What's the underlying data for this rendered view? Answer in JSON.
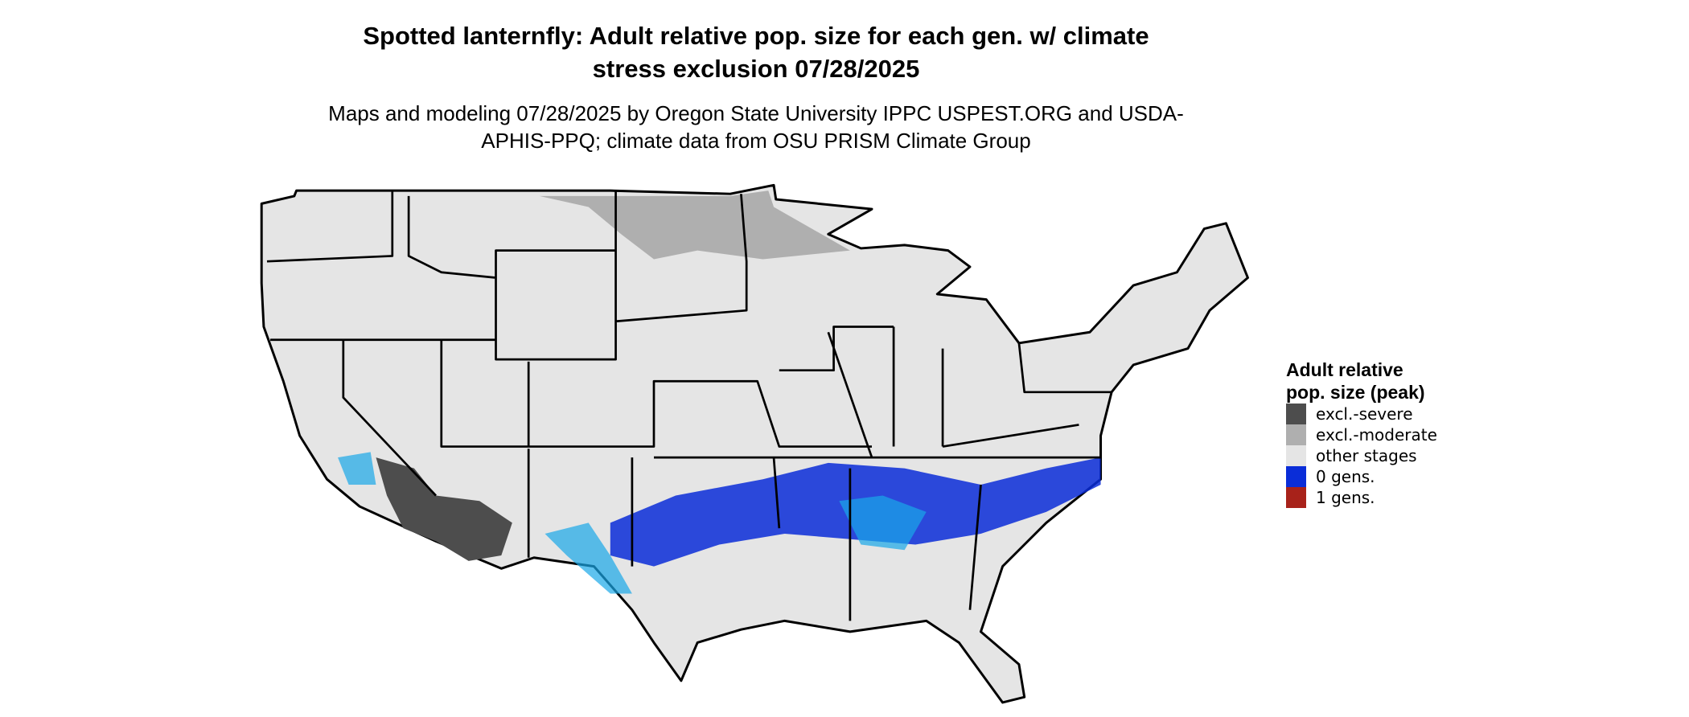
{
  "title": "Spotted lanternfly: Adult relative pop. size for each gen. w/ climate stress exclusion 07/28/2025",
  "subtitle": "Maps and modeling 07/28/2025 by Oregon State University IPPC USPEST.ORG and USDA-APHIS-PPQ; climate data from OSU PRISM Climate Group",
  "legend": {
    "title": "Adult relative pop. size (peak)",
    "items": [
      {
        "label": "excl.-severe",
        "color": "#4d4d4d"
      },
      {
        "label": "excl.-moderate",
        "color": "#afafaf"
      },
      {
        "label": "other stages",
        "color": "#e5e5e5"
      },
      {
        "label": "0 gens.",
        "color": "#0a2dd8"
      },
      {
        "label": "1 gens.",
        "color": "#a8221a"
      }
    ]
  }
}
